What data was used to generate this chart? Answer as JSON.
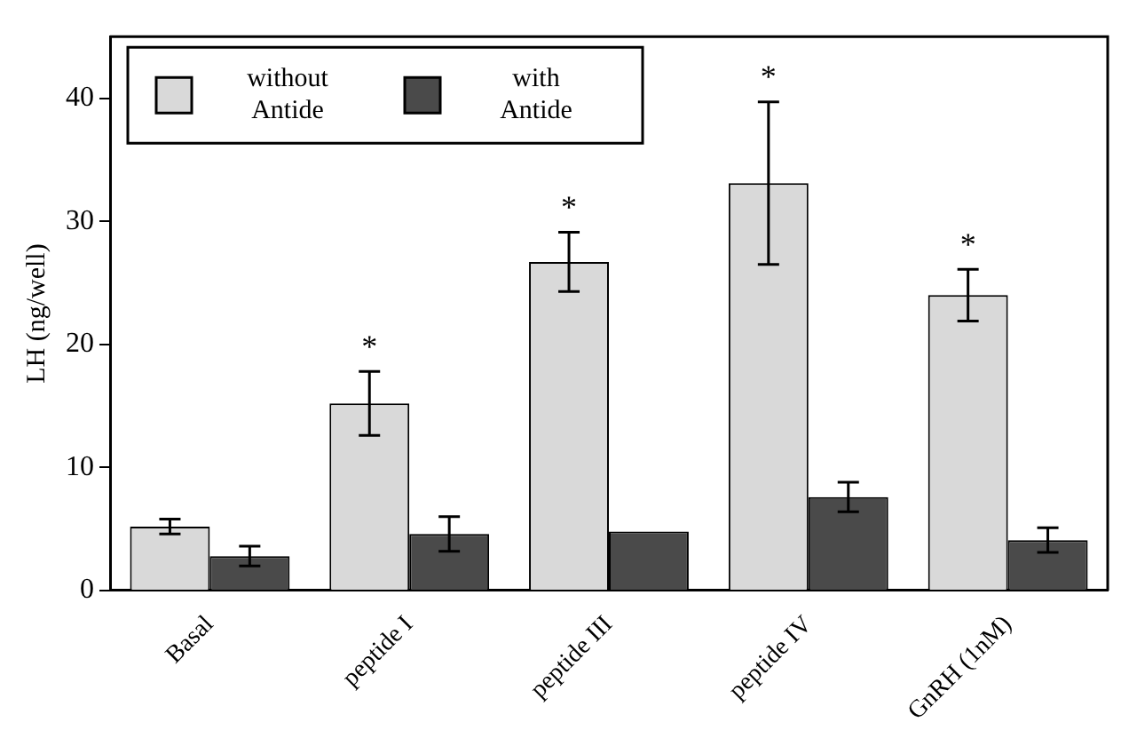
{
  "chart_data": {
    "type": "bar",
    "ylabel": "LH (ng/well)",
    "categories": [
      "Basal",
      "peptide I",
      "peptide III",
      "peptide IV",
      "GnRH (1nM)"
    ],
    "series": [
      {
        "name": "without Antide",
        "color": "#d9d9d9",
        "values": [
          5.2,
          15.2,
          26.7,
          33.1,
          24.0
        ],
        "errors": [
          0.6,
          2.6,
          2.4,
          6.6,
          2.1
        ]
      },
      {
        "name": "with Antide",
        "color": "#4a4a4a",
        "values": [
          2.8,
          4.6,
          4.8,
          7.6,
          4.1
        ],
        "errors": [
          0.8,
          1.4,
          null,
          1.2,
          1.0
        ]
      }
    ],
    "ylim": [
      0,
      45
    ],
    "yticks": [
      0,
      10,
      20,
      30,
      40
    ],
    "grid": false,
    "legend": "top left",
    "annotations": [
      {
        "text": "*",
        "x": "peptide I",
        "y": 17.8
      },
      {
        "text": "*",
        "x": "peptide III",
        "y": 29.1
      },
      {
        "text": "*",
        "x": "peptide IV",
        "y": 39.7
      },
      {
        "text": "*",
        "x": "GnRH (1nM)",
        "y": 26.1
      }
    ]
  }
}
